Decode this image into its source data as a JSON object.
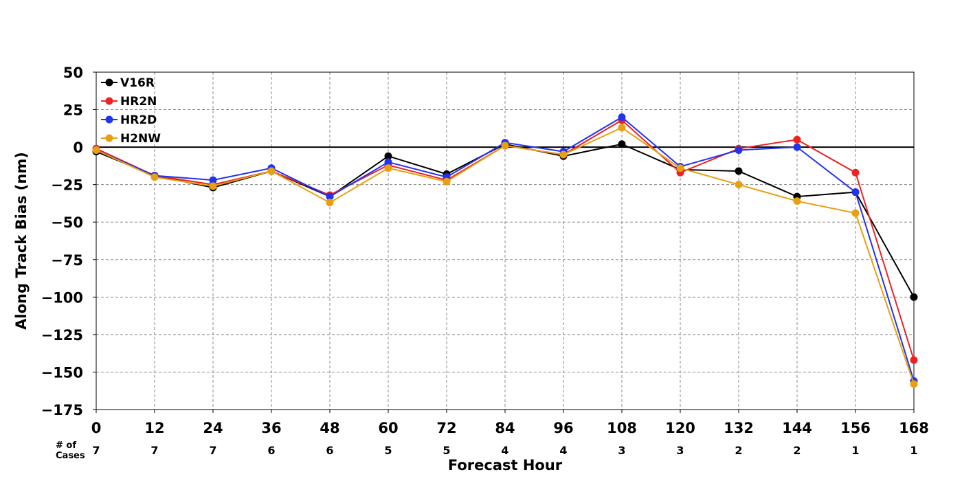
{
  "chart_data": {
    "type": "line",
    "title": "",
    "xlabel": "Forecast Hour",
    "ylabel": "Along Track Bias (nm)",
    "x": [
      0,
      12,
      24,
      36,
      48,
      60,
      72,
      84,
      96,
      108,
      120,
      132,
      144,
      156,
      168
    ],
    "x_tick_labels": [
      "0",
      "12",
      "24",
      "36",
      "48",
      "60",
      "72",
      "84",
      "96",
      "108",
      "120",
      "132",
      "144",
      "156",
      "168"
    ],
    "y_ticks": [
      50,
      25,
      0,
      -25,
      -50,
      -75,
      -100,
      -125,
      -150,
      -175
    ],
    "y_tick_labels": [
      "50",
      "25",
      "0",
      "−25",
      "−50",
      "−75",
      "−100",
      "−125",
      "−150",
      "−175"
    ],
    "xlim": [
      0,
      168
    ],
    "ylim": [
      -175,
      50
    ],
    "grid": true,
    "zero_line": true,
    "legend_position": "top-left",
    "cases_label": "# of\nCases",
    "cases": [
      "7",
      "7",
      "7",
      "6",
      "6",
      "5",
      "5",
      "4",
      "4",
      "3",
      "3",
      "2",
      "2",
      "1",
      "1"
    ],
    "series": [
      {
        "name": "V16R",
        "color": "#000000",
        "values": [
          -3,
          -19,
          -27,
          -16,
          -33,
          -6,
          -18,
          2,
          -6,
          2,
          -15,
          -16,
          -33,
          -30,
          -100
        ]
      },
      {
        "name": "HR2N",
        "color": "#ee2222",
        "values": [
          -1,
          -19,
          -25,
          -16,
          -32,
          -12,
          -22,
          1,
          -5,
          18,
          -17,
          -1,
          5,
          -17,
          -142
        ]
      },
      {
        "name": "HR2D",
        "color": "#2233ee",
        "values": [
          -2,
          -19,
          -22,
          -14,
          -33,
          -10,
          -20,
          3,
          -3,
          20,
          -13,
          -2,
          0,
          -30,
          -156
        ]
      },
      {
        "name": "H2NW",
        "color": "#e8a010",
        "values": [
          -2,
          -20,
          -26,
          -16,
          -37,
          -14,
          -23,
          1,
          -5,
          13,
          -14,
          -25,
          -36,
          -44,
          -158
        ]
      }
    ]
  }
}
